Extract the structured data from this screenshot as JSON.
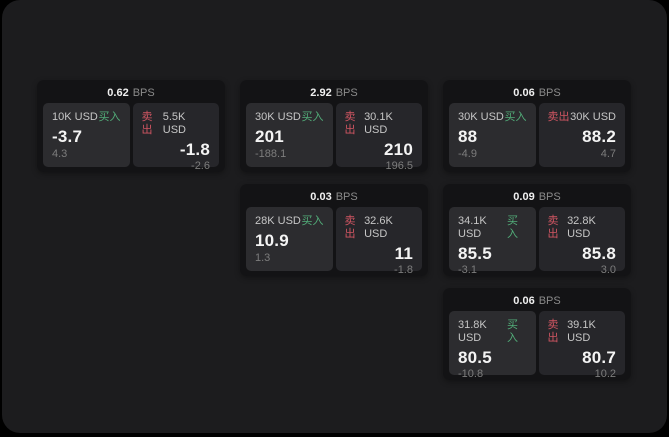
{
  "theme": {
    "outer_bg": "#000000",
    "surface_bg": "#1c1c1e",
    "card_bg": "#131315",
    "buy_panel_bg": "#2c2c2f",
    "sell_panel_bg": "#26262a",
    "buy_green": "#52ad79",
    "sell_red": "#d05562",
    "text_primary": "#f4f4f4",
    "text_secondary": "#c6c6c6",
    "text_muted": "#7d7d7d"
  },
  "labels": {
    "bps": "BPS",
    "buy": "买入",
    "sell": "卖出"
  },
  "cards": [
    {
      "bps": "0.62",
      "buy": {
        "size": "10K USD",
        "price": "-3.7",
        "delta": "4.3"
      },
      "sell": {
        "size": "5.5K USD",
        "price": "-1.8",
        "delta": "-2.6"
      }
    },
    {
      "bps": "2.92",
      "buy": {
        "size": "30K USD",
        "price": "201",
        "delta": "-188.1"
      },
      "sell": {
        "size": "30.1K USD",
        "price": "210",
        "delta": "196.5"
      }
    },
    {
      "bps": "0.06",
      "buy": {
        "size": "30K USD",
        "price": "88",
        "delta": "-4.9"
      },
      "sell": {
        "size": "30K USD",
        "price": "88.2",
        "delta": "4.7"
      }
    },
    {
      "bps": "0.03",
      "buy": {
        "size": "28K USD",
        "price": "10.9",
        "delta": "1.3"
      },
      "sell": {
        "size": "32.6K USD",
        "price": "11",
        "delta": "-1.8"
      }
    },
    {
      "bps": "0.09",
      "buy": {
        "size": "34.1K USD",
        "price": "85.5",
        "delta": "-3.1"
      },
      "sell": {
        "size": "32.8K USD",
        "price": "85.8",
        "delta": "3.0"
      }
    },
    {
      "bps": "0.06",
      "buy": {
        "size": "31.8K USD",
        "price": "80.5",
        "delta": "-10.8"
      },
      "sell": {
        "size": "39.1K USD",
        "price": "80.7",
        "delta": "10.2"
      }
    }
  ]
}
